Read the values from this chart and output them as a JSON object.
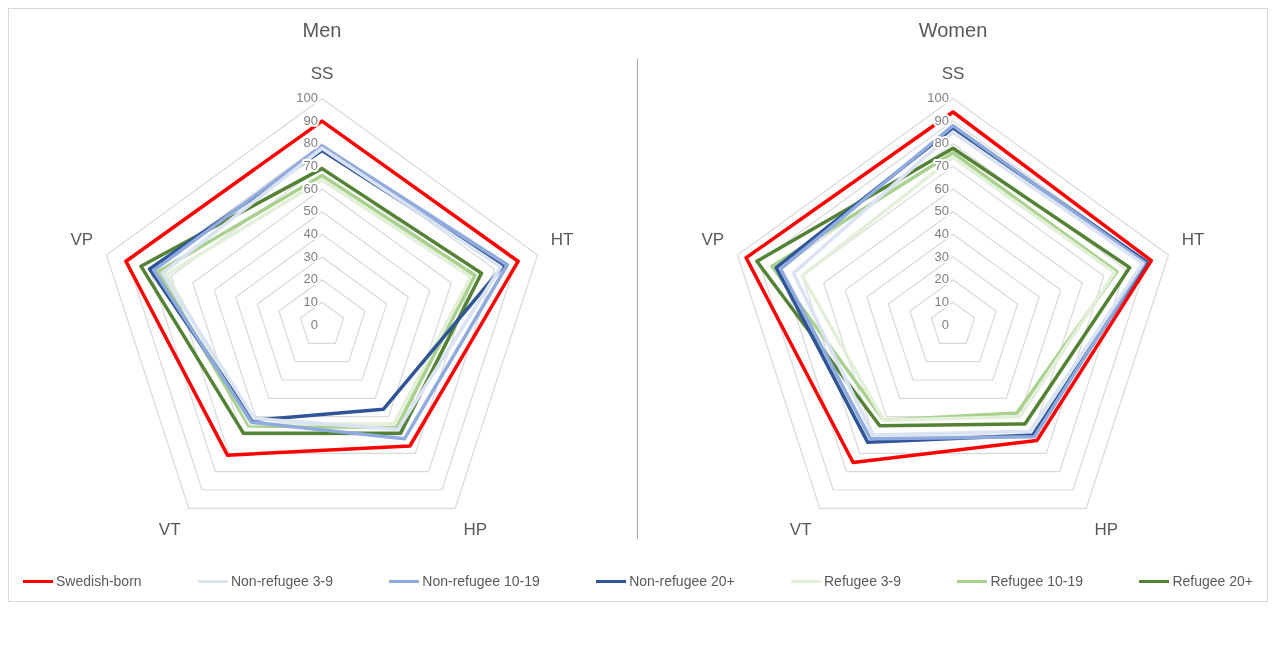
{
  "chart_data": [
    {
      "type": "radar",
      "title": "Men",
      "categories": [
        "SS",
        "HT",
        "HP",
        "VT",
        "VP"
      ],
      "ylim": [
        0,
        100
      ],
      "yticks": [
        0,
        10,
        20,
        30,
        40,
        50,
        60,
        70,
        80,
        90,
        100
      ],
      "grid": true,
      "legend": "bottom",
      "marker": "none",
      "series": [
        {
          "name": "Swedish-born",
          "color": "#ff0000",
          "values": [
            90,
            91,
            66,
            71,
            91
          ]
        },
        {
          "name": "Non-refugee 3-9",
          "color": "#dae3f3",
          "values": [
            78,
            83,
            57,
            51,
            74
          ]
        },
        {
          "name": "Non-refugee 10-19",
          "color": "#8faadc",
          "values": [
            79,
            86,
            62,
            53,
            78
          ]
        },
        {
          "name": "Non-refugee 20+",
          "color": "#2f5597",
          "values": [
            77,
            84,
            46,
            52,
            80
          ]
        },
        {
          "name": "Refugee 3-9",
          "color": "#e2f0d9",
          "values": [
            64,
            69,
            54,
            54,
            72
          ]
        },
        {
          "name": "Refugee 10-19",
          "color": "#a9d18e",
          "values": [
            66,
            71,
            56,
            55,
            76
          ]
        },
        {
          "name": "Refugee 20+",
          "color": "#548235",
          "values": [
            69,
            74,
            59,
            59,
            84
          ]
        }
      ]
    },
    {
      "type": "radar",
      "title": "Women",
      "categories": [
        "SS",
        "HT",
        "HP",
        "VT",
        "VP"
      ],
      "ylim": [
        0,
        100
      ],
      "yticks": [
        0,
        10,
        20,
        30,
        40,
        50,
        60,
        70,
        80,
        90,
        100
      ],
      "grid": true,
      "legend": "bottom",
      "marker": "none",
      "series": [
        {
          "name": "Swedish-born",
          "color": "#ff0000",
          "values": [
            94,
            92,
            63,
            75,
            96
          ]
        },
        {
          "name": "Non-refugee 3-9",
          "color": "#dae3f3",
          "values": [
            85,
            88,
            58,
            60,
            74
          ]
        },
        {
          "name": "Non-refugee 10-19",
          "color": "#8faadc",
          "values": [
            88,
            89,
            61,
            62,
            80
          ]
        },
        {
          "name": "Non-refugee 20+",
          "color": "#2f5597",
          "values": [
            87,
            90,
            60,
            64,
            82
          ]
        },
        {
          "name": "Refugee 3-9",
          "color": "#e2f0d9",
          "values": [
            74,
            75,
            50,
            52,
            70
          ]
        },
        {
          "name": "Refugee 10-19",
          "color": "#a9d18e",
          "values": [
            76,
            76,
            48,
            52,
            84
          ]
        },
        {
          "name": "Refugee 20+",
          "color": "#548235",
          "values": [
            78,
            82,
            54,
            55,
            91
          ]
        }
      ]
    }
  ]
}
